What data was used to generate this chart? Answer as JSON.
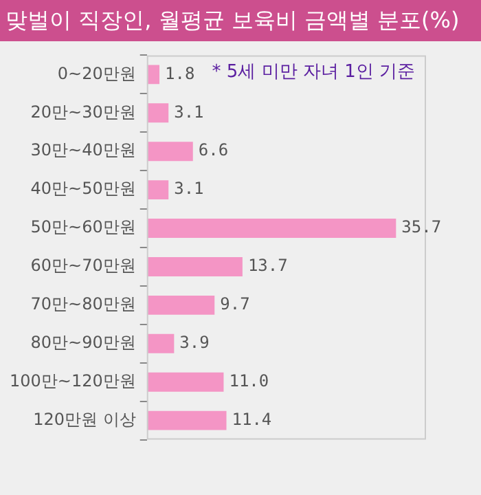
{
  "chart_data": {
    "type": "bar",
    "orientation": "horizontal",
    "title": "맞벌이 직장인, 월평균 보육비 금액별 분포(%)",
    "categories": [
      "0~20만원",
      "20만~30만원",
      "30만~40만원",
      "40만~50만원",
      "50만~60만원",
      "60만~70만원",
      "70만~80만원",
      "80만~90만원",
      "100만~120만원",
      "120만원 이상"
    ],
    "values": [
      1.8,
      3.1,
      6.6,
      3.1,
      35.7,
      13.7,
      9.7,
      3.9,
      11.0,
      11.4
    ],
    "value_labels": [
      "1.8",
      "3.1",
      "6.6",
      "3.1",
      "35.7",
      "13.7",
      "9.7",
      "3.9",
      "11.0",
      "11.4"
    ],
    "color": "#f495c5",
    "annotations": [
      "* 5세 미만 자녀 1인 기준"
    ],
    "legend": false,
    "tick_labels": "y"
  }
}
